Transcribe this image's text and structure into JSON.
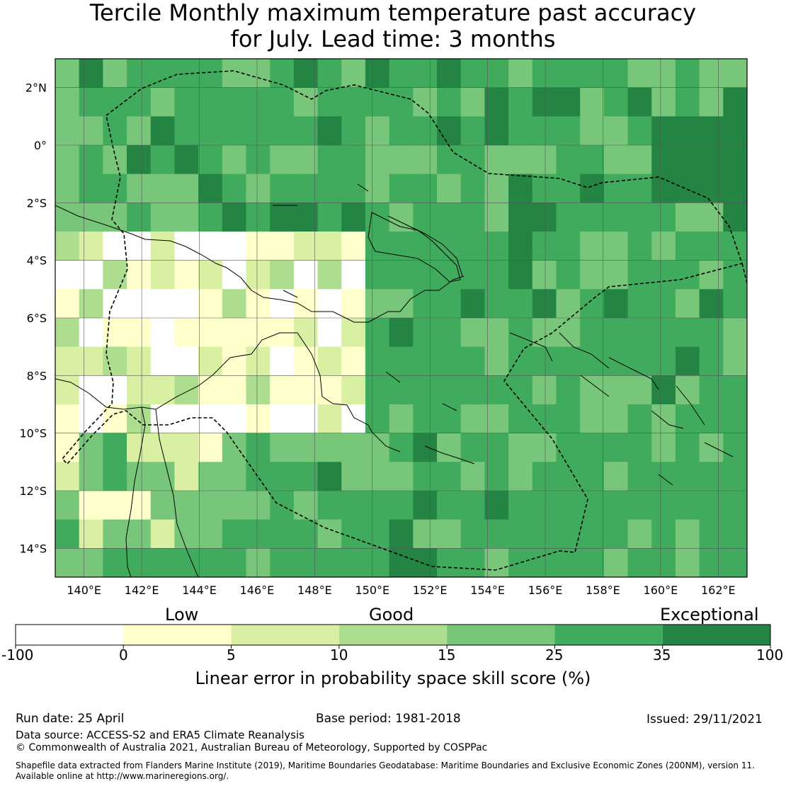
{
  "title_line1": "Tercile Monthly maximum temperature past accuracy",
  "title_line2": "for July. Lead time: 3 months",
  "map": {
    "lon_min": 139,
    "lon_max": 163,
    "lat_min": -15,
    "lat_max": 3,
    "lat_ticks": [
      {
        "value": 2,
        "label": "2°N"
      },
      {
        "value": 0,
        "label": "0°"
      },
      {
        "value": -2,
        "label": "2°S"
      },
      {
        "value": -4,
        "label": "4°S"
      },
      {
        "value": -6,
        "label": "6°S"
      },
      {
        "value": -8,
        "label": "8°S"
      },
      {
        "value": -10,
        "label": "10°S"
      },
      {
        "value": -12,
        "label": "12°S"
      },
      {
        "value": -14,
        "label": "14°S"
      }
    ],
    "lon_ticks": [
      {
        "value": 140,
        "label": "140°E"
      },
      {
        "value": 142,
        "label": "142°E"
      },
      {
        "value": 144,
        "label": "144°E"
      },
      {
        "value": 146,
        "label": "146°E"
      },
      {
        "value": 148,
        "label": "148°E"
      },
      {
        "value": 150,
        "label": "150°E"
      },
      {
        "value": 152,
        "label": "152°E"
      },
      {
        "value": 154,
        "label": "154°E"
      },
      {
        "value": 156,
        "label": "156°E"
      },
      {
        "value": 158,
        "label": "158°E"
      },
      {
        "value": 160,
        "label": "160°E"
      },
      {
        "value": 162,
        "label": "162°E"
      }
    ]
  },
  "colorbar": {
    "category_labels": {
      "low": "Low",
      "good": "Good",
      "exceptional": "Exceptional"
    },
    "bins": [
      {
        "from": -100,
        "to": 0,
        "color": "#ffffff"
      },
      {
        "from": 0,
        "to": 5,
        "color": "#ffffcc"
      },
      {
        "from": 5,
        "to": 10,
        "color": "#d9f0a3"
      },
      {
        "from": 10,
        "to": 15,
        "color": "#addd8e"
      },
      {
        "from": 15,
        "to": 25,
        "color": "#78c679"
      },
      {
        "from": 25,
        "to": 35,
        "color": "#41ab5d"
      },
      {
        "from": 35,
        "to": 100,
        "color": "#238443"
      }
    ],
    "tick_labels": [
      "-100",
      "0",
      "5",
      "10",
      "15",
      "25",
      "35",
      "100"
    ],
    "axis_title": "Linear error in probability space skill score (%)"
  },
  "footer": {
    "run_date": "Run date: 25 April",
    "base_period": "Base period: 1981-2018",
    "issued": "Issued: 29/11/2021",
    "data_source": "Data source: ACCESS-S2 and ERA5 Climate Reanalysis",
    "copyright": "© Commonwealth of Australia 2021, Australian Bureau of Meteorology, Supported by COSPPac",
    "shapefile_line1": "Shapefile data extracted from Flanders Marine Institute (2019), Maritime Boundaries Geodatabase: Maritime Boundaries and Exclusive Economic Zones (200NM), version 11.",
    "shapefile_line2": "Available online at http://www.marineregions.org/."
  }
}
